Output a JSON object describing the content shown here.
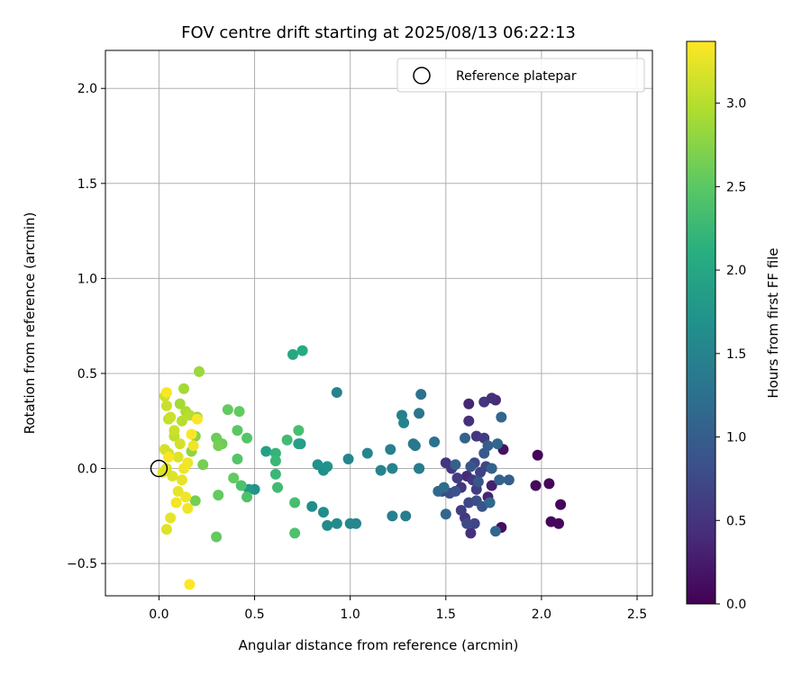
{
  "chart_data": {
    "type": "scatter",
    "title": "FOV centre drift starting at 2025/08/13 06:22:13",
    "xlabel": "Angular distance from reference (arcmin)",
    "ylabel": "Rotation from reference (arcmin)",
    "xlim": [
      -0.28,
      2.58
    ],
    "ylim": [
      -0.67,
      2.2
    ],
    "xticks": [
      "0.0",
      "0.5",
      "1.0",
      "1.5",
      "2.0",
      "2.5"
    ],
    "xtick_values": [
      0,
      0.5,
      1.0,
      1.5,
      2.0,
      2.5
    ],
    "yticks": [
      "−0.5",
      "0.0",
      "0.5",
      "1.0",
      "1.5",
      "2.0"
    ],
    "ytick_values": [
      -0.5,
      0,
      0.5,
      1.0,
      1.5,
      2.0
    ],
    "grid": true,
    "legend": {
      "placement": "top-right",
      "label": "Reference platepar"
    },
    "reference_point": {
      "x": 0.0,
      "y": 0.0
    },
    "colorbar": {
      "label": "Hours from first FF file",
      "range": [
        0,
        3.37
      ],
      "ticks": [
        "0.0",
        "0.5",
        "1.0",
        "1.5",
        "2.0",
        "2.5",
        "3.0"
      ],
      "tick_values": [
        0,
        0.5,
        1.0,
        1.5,
        2.0,
        2.5,
        3.0
      ],
      "colormap": "viridis"
    },
    "points": [
      {
        "x": 1.98,
        "y": 0.07,
        "t": 0.05
      },
      {
        "x": 2.04,
        "y": -0.08,
        "t": 0.05
      },
      {
        "x": 2.1,
        "y": -0.19,
        "t": 0.06
      },
      {
        "x": 1.97,
        "y": -0.09,
        "t": 0.08
      },
      {
        "x": 2.05,
        "y": -0.28,
        "t": 0.05
      },
      {
        "x": 2.09,
        "y": -0.29,
        "t": 0.06
      },
      {
        "x": 1.8,
        "y": 0.1,
        "t": 0.15
      },
      {
        "x": 1.79,
        "y": -0.31,
        "t": 0.12
      },
      {
        "x": 1.74,
        "y": -0.09,
        "t": 0.3
      },
      {
        "x": 1.72,
        "y": -0.15,
        "t": 0.35
      },
      {
        "x": 1.76,
        "y": 0.36,
        "t": 0.4
      },
      {
        "x": 1.74,
        "y": 0.37,
        "t": 0.45
      },
      {
        "x": 1.7,
        "y": 0.35,
        "t": 0.5
      },
      {
        "x": 1.62,
        "y": 0.34,
        "t": 0.35
      },
      {
        "x": 1.62,
        "y": 0.25,
        "t": 0.45
      },
      {
        "x": 1.66,
        "y": 0.17,
        "t": 0.55
      },
      {
        "x": 1.7,
        "y": 0.16,
        "t": 0.6
      },
      {
        "x": 1.63,
        "y": -0.34,
        "t": 0.45
      },
      {
        "x": 1.6,
        "y": -0.26,
        "t": 0.55
      },
      {
        "x": 1.58,
        "y": -0.22,
        "t": 0.6
      },
      {
        "x": 1.65,
        "y": -0.29,
        "t": 0.7
      },
      {
        "x": 1.61,
        "y": -0.29,
        "t": 0.75
      },
      {
        "x": 1.58,
        "y": -0.1,
        "t": 0.5
      },
      {
        "x": 1.61,
        "y": -0.04,
        "t": 0.4
      },
      {
        "x": 1.64,
        "y": -0.06,
        "t": 0.55
      },
      {
        "x": 1.66,
        "y": -0.11,
        "t": 0.6
      },
      {
        "x": 1.68,
        "y": -0.02,
        "t": 0.65
      },
      {
        "x": 1.71,
        "y": 0.01,
        "t": 0.7
      },
      {
        "x": 1.65,
        "y": 0.03,
        "t": 0.75
      },
      {
        "x": 1.56,
        "y": -0.05,
        "t": 0.6
      },
      {
        "x": 1.53,
        "y": 0.0,
        "t": 0.55
      },
      {
        "x": 1.5,
        "y": 0.03,
        "t": 0.5
      },
      {
        "x": 1.48,
        "y": -0.12,
        "t": 0.65
      },
      {
        "x": 1.52,
        "y": -0.13,
        "t": 0.8
      },
      {
        "x": 1.55,
        "y": -0.12,
        "t": 0.85
      },
      {
        "x": 1.62,
        "y": -0.18,
        "t": 0.7
      },
      {
        "x": 1.66,
        "y": -0.17,
        "t": 0.8
      },
      {
        "x": 1.63,
        "y": 0.01,
        "t": 0.9
      },
      {
        "x": 1.67,
        "y": -0.07,
        "t": 0.9
      },
      {
        "x": 1.69,
        "y": -0.2,
        "t": 0.85
      },
      {
        "x": 1.7,
        "y": 0.08,
        "t": 0.95
      },
      {
        "x": 1.72,
        "y": 0.12,
        "t": 1.0
      },
      {
        "x": 1.74,
        "y": -0.0,
        "t": 1.05
      },
      {
        "x": 1.76,
        "y": -0.33,
        "t": 1.1
      },
      {
        "x": 1.73,
        "y": -0.18,
        "t": 1.15
      },
      {
        "x": 1.77,
        "y": 0.13,
        "t": 1.1
      },
      {
        "x": 1.79,
        "y": 0.27,
        "t": 1.1
      },
      {
        "x": 1.83,
        "y": -0.06,
        "t": 1.0
      },
      {
        "x": 1.78,
        "y": -0.06,
        "t": 1.05
      },
      {
        "x": 1.6,
        "y": 0.16,
        "t": 1.05
      },
      {
        "x": 1.55,
        "y": 0.02,
        "t": 1.05
      },
      {
        "x": 1.5,
        "y": -0.24,
        "t": 1.1
      },
      {
        "x": 1.46,
        "y": -0.12,
        "t": 1.15
      },
      {
        "x": 1.49,
        "y": -0.1,
        "t": 1.2
      },
      {
        "x": 1.44,
        "y": 0.14,
        "t": 1.25
      },
      {
        "x": 1.37,
        "y": 0.39,
        "t": 1.25
      },
      {
        "x": 1.36,
        "y": 0.29,
        "t": 1.3
      },
      {
        "x": 1.33,
        "y": 0.13,
        "t": 1.3
      },
      {
        "x": 1.34,
        "y": 0.12,
        "t": 1.35
      },
      {
        "x": 1.36,
        "y": 0.0,
        "t": 1.35
      },
      {
        "x": 1.36,
        "y": -0.0,
        "t": 1.4
      },
      {
        "x": 1.29,
        "y": -0.25,
        "t": 1.4
      },
      {
        "x": 1.22,
        "y": -0.25,
        "t": 1.45
      },
      {
        "x": 1.21,
        "y": 0.1,
        "t": 1.45
      },
      {
        "x": 1.22,
        "y": 0.0,
        "t": 1.5
      },
      {
        "x": 1.16,
        "y": -0.01,
        "t": 1.5
      },
      {
        "x": 1.27,
        "y": 0.28,
        "t": 1.45
      },
      {
        "x": 1.28,
        "y": 0.24,
        "t": 1.5
      },
      {
        "x": 1.09,
        "y": 0.08,
        "t": 1.55
      },
      {
        "x": 0.99,
        "y": 0.05,
        "t": 1.55
      },
      {
        "x": 0.93,
        "y": 0.4,
        "t": 1.5
      },
      {
        "x": 1.03,
        "y": -0.29,
        "t": 1.55
      },
      {
        "x": 1.0,
        "y": -0.29,
        "t": 1.55
      },
      {
        "x": 0.93,
        "y": -0.29,
        "t": 1.6
      },
      {
        "x": 0.88,
        "y": -0.3,
        "t": 1.6
      },
      {
        "x": 0.86,
        "y": -0.23,
        "t": 1.65
      },
      {
        "x": 0.8,
        "y": -0.2,
        "t": 1.65
      },
      {
        "x": 0.86,
        "y": -0.01,
        "t": 1.65
      },
      {
        "x": 0.88,
        "y": 0.01,
        "t": 1.7
      },
      {
        "x": 0.83,
        "y": 0.02,
        "t": 1.7
      },
      {
        "x": 0.74,
        "y": 0.13,
        "t": 1.85
      },
      {
        "x": 0.73,
        "y": 0.13,
        "t": 1.9
      },
      {
        "x": 0.7,
        "y": 0.6,
        "t": 2.0
      },
      {
        "x": 0.75,
        "y": 0.62,
        "t": 2.05
      },
      {
        "x": 0.56,
        "y": 0.09,
        "t": 1.9
      },
      {
        "x": 0.5,
        "y": -0.11,
        "t": 1.7
      },
      {
        "x": 0.47,
        "y": -0.11,
        "t": 1.8
      },
      {
        "x": 0.61,
        "y": 0.08,
        "t": 2.2
      },
      {
        "x": 0.61,
        "y": 0.04,
        "t": 2.25
      },
      {
        "x": 0.61,
        "y": -0.03,
        "t": 2.25
      },
      {
        "x": 0.62,
        "y": -0.1,
        "t": 2.3
      },
      {
        "x": 0.67,
        "y": 0.15,
        "t": 2.3
      },
      {
        "x": 0.73,
        "y": 0.2,
        "t": 2.35
      },
      {
        "x": 0.71,
        "y": -0.18,
        "t": 2.35
      },
      {
        "x": 0.71,
        "y": -0.34,
        "t": 2.4
      },
      {
        "x": 0.43,
        "y": -0.09,
        "t": 2.4
      },
      {
        "x": 0.46,
        "y": -0.15,
        "t": 2.4
      },
      {
        "x": 0.46,
        "y": 0.16,
        "t": 2.45
      },
      {
        "x": 0.41,
        "y": 0.05,
        "t": 2.45
      },
      {
        "x": 0.41,
        "y": 0.2,
        "t": 2.5
      },
      {
        "x": 0.42,
        "y": 0.3,
        "t": 2.55
      },
      {
        "x": 0.36,
        "y": 0.31,
        "t": 2.55
      },
      {
        "x": 0.39,
        "y": -0.05,
        "t": 2.55
      },
      {
        "x": 0.31,
        "y": -0.14,
        "t": 2.55
      },
      {
        "x": 0.3,
        "y": -0.36,
        "t": 2.55
      },
      {
        "x": 0.3,
        "y": 0.16,
        "t": 2.6
      },
      {
        "x": 0.33,
        "y": 0.13,
        "t": 2.6
      },
      {
        "x": 0.31,
        "y": 0.12,
        "t": 2.65
      },
      {
        "x": 0.23,
        "y": 0.02,
        "t": 2.65
      },
      {
        "x": 0.19,
        "y": -0.17,
        "t": 2.65
      },
      {
        "x": 0.21,
        "y": 0.51,
        "t": 2.85
      },
      {
        "x": 0.2,
        "y": 0.27,
        "t": 2.8
      },
      {
        "x": 0.19,
        "y": 0.17,
        "t": 2.75
      },
      {
        "x": 0.17,
        "y": 0.09,
        "t": 2.8
      },
      {
        "x": 0.13,
        "y": 0.42,
        "t": 2.9
      },
      {
        "x": 0.11,
        "y": 0.34,
        "t": 2.9
      },
      {
        "x": 0.14,
        "y": 0.3,
        "t": 2.95
      },
      {
        "x": 0.12,
        "y": 0.25,
        "t": 3.0
      },
      {
        "x": 0.16,
        "y": 0.28,
        "t": 3.0
      },
      {
        "x": 0.08,
        "y": 0.17,
        "t": 3.05
      },
      {
        "x": 0.05,
        "y": 0.26,
        "t": 3.05
      },
      {
        "x": 0.03,
        "y": 0.38,
        "t": 3.1
      },
      {
        "x": 0.04,
        "y": 0.33,
        "t": 3.1
      },
      {
        "x": 0.06,
        "y": 0.27,
        "t": 3.1
      },
      {
        "x": 0.08,
        "y": 0.2,
        "t": 3.1
      },
      {
        "x": 0.03,
        "y": 0.1,
        "t": 3.15
      },
      {
        "x": 0.05,
        "y": 0.08,
        "t": 3.15
      },
      {
        "x": 0.11,
        "y": 0.13,
        "t": 3.15
      },
      {
        "x": 0.1,
        "y": 0.06,
        "t": 3.2
      },
      {
        "x": 0.04,
        "y": 0.0,
        "t": 3.2
      },
      {
        "x": 0.02,
        "y": -0.02,
        "t": 3.2
      },
      {
        "x": 0.07,
        "y": -0.04,
        "t": 3.2
      },
      {
        "x": 0.12,
        "y": -0.06,
        "t": 3.25
      },
      {
        "x": 0.1,
        "y": -0.12,
        "t": 3.25
      },
      {
        "x": 0.09,
        "y": -0.18,
        "t": 3.3
      },
      {
        "x": 0.14,
        "y": -0.15,
        "t": 3.3
      },
      {
        "x": 0.15,
        "y": -0.21,
        "t": 3.3
      },
      {
        "x": 0.06,
        "y": -0.26,
        "t": 3.25
      },
      {
        "x": 0.04,
        "y": -0.32,
        "t": 3.2
      },
      {
        "x": 0.13,
        "y": -0.0,
        "t": 3.3
      },
      {
        "x": 0.15,
        "y": 0.03,
        "t": 3.3
      },
      {
        "x": 0.18,
        "y": 0.12,
        "t": 3.3
      },
      {
        "x": 0.17,
        "y": 0.18,
        "t": 3.35
      },
      {
        "x": 0.2,
        "y": 0.26,
        "t": 3.35
      },
      {
        "x": 0.04,
        "y": 0.4,
        "t": 3.35
      },
      {
        "x": 0.05,
        "y": 0.06,
        "t": 3.35
      },
      {
        "x": 0.16,
        "y": -0.61,
        "t": 3.37
      }
    ]
  }
}
